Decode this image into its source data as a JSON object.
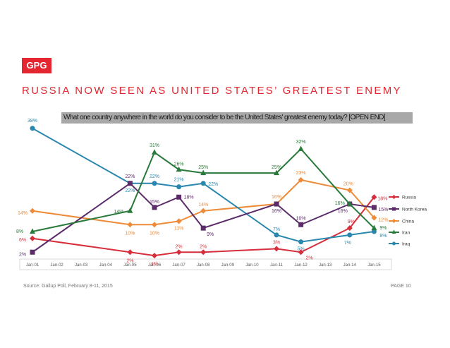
{
  "logo": "GPG",
  "title": "RUSSIA NOW SEEN AS UNITED STATES’ GREATEST ENEMY",
  "question": "What one country anywhere in the world do you consider to be the United States' greatest enemy today? [OPEN END]",
  "footer": {
    "source": "Source: Gallup Poll, February 8-11, 2015",
    "page": "PAGE 10"
  },
  "colors": {
    "brand": "#e3262f"
  },
  "chart_data": {
    "type": "line",
    "x": [
      "Jan-01",
      "Jan-02",
      "Jan-03",
      "Jan-04",
      "Jan-05",
      "Jan-06",
      "Jan-07",
      "Jan-08",
      "Jan-09",
      "Jan-10",
      "Jan-11",
      "Jan-12",
      "Jan-13",
      "Jan-14",
      "Jan-15"
    ],
    "ylim": [
      0,
      40
    ],
    "legend_position": "right",
    "series": [
      {
        "name": "Russia",
        "color": "#d62e3b",
        "marker": "diamond",
        "points": [
          [
            "Jan-01",
            6
          ],
          [
            "Jan-05",
            2
          ],
          [
            "Jan-06",
            1
          ],
          [
            "Jan-07",
            2
          ],
          [
            "Jan-08",
            2
          ],
          [
            "Jan-11",
            3
          ],
          [
            "Jan-12",
            2
          ],
          [
            "Jan-14",
            9
          ],
          [
            "Jan-15",
            18
          ]
        ]
      },
      {
        "name": "North Korea",
        "color": "#5c2c6a",
        "marker": "square",
        "points": [
          [
            "Jan-01",
            2
          ],
          [
            "Jan-05",
            22
          ],
          [
            "Jan-06",
            15
          ],
          [
            "Jan-07",
            18
          ],
          [
            "Jan-08",
            9
          ],
          [
            "Jan-11",
            16
          ],
          [
            "Jan-12",
            10
          ],
          [
            "Jan-14",
            16
          ],
          [
            "Jan-15",
            15
          ]
        ]
      },
      {
        "name": "China",
        "color": "#ed8b39",
        "marker": "diamond",
        "points": [
          [
            "Jan-01",
            14
          ],
          [
            "Jan-05",
            10
          ],
          [
            "Jan-06",
            10
          ],
          [
            "Jan-07",
            11
          ],
          [
            "Jan-08",
            14
          ],
          [
            "Jan-11",
            16
          ],
          [
            "Jan-12",
            23
          ],
          [
            "Jan-14",
            20
          ],
          [
            "Jan-15",
            12
          ]
        ]
      },
      {
        "name": "Iran",
        "color": "#2a7a3b",
        "marker": "triangle",
        "points": [
          [
            "Jan-01",
            8
          ],
          [
            "Jan-05",
            14
          ],
          [
            "Jan-06",
            31
          ],
          [
            "Jan-07",
            26
          ],
          [
            "Jan-08",
            25
          ],
          [
            "Jan-11",
            25
          ],
          [
            "Jan-12",
            32
          ],
          [
            "Jan-14",
            16
          ],
          [
            "Jan-15",
            9
          ]
        ]
      },
      {
        "name": "Iraq",
        "color": "#2a87ad",
        "marker": "circle",
        "points": [
          [
            "Jan-01",
            38
          ],
          [
            "Jan-05",
            22
          ],
          [
            "Jan-06",
            22
          ],
          [
            "Jan-07",
            21
          ],
          [
            "Jan-08",
            22
          ],
          [
            "Jan-11",
            7
          ],
          [
            "Jan-12",
            5
          ],
          [
            "Jan-14",
            7
          ],
          [
            "Jan-15",
            8
          ]
        ]
      }
    ]
  }
}
